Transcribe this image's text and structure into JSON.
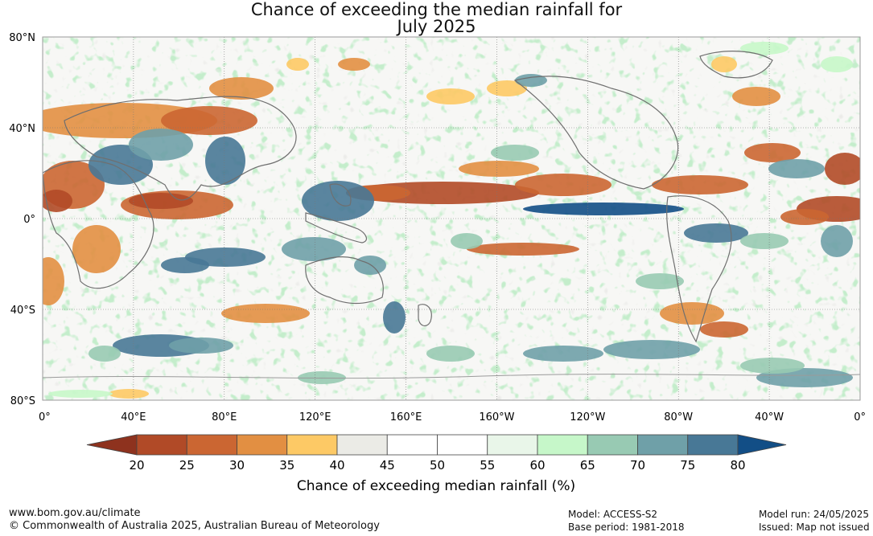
{
  "title": {
    "line1": "Chance of exceeding the median rainfall for",
    "line2": "July 2025"
  },
  "map": {
    "lat_labels": [
      "80°N",
      "40°N",
      "0°",
      "40°S",
      "80°S"
    ],
    "lon_labels": [
      "0°",
      "40°E",
      "80°E",
      "120°E",
      "160°E",
      "160°W",
      "120°W",
      "80°W",
      "40°W",
      "0°"
    ]
  },
  "colorbar": {
    "ticks": [
      "20",
      "25",
      "30",
      "35",
      "40",
      "45",
      "50",
      "55",
      "60",
      "65",
      "70",
      "75",
      "80"
    ],
    "colors": [
      "#8e321e",
      "#b14a27",
      "#cb6632",
      "#e28f42",
      "#fdc965",
      "#ebebe6",
      "#ffffff",
      "#ffffff",
      "#e9f6e9",
      "#c6f7c9",
      "#98cab3",
      "#6fa0a8",
      "#487896",
      "#124e86"
    ],
    "label": "Chance of exceeding median rainfall (%)"
  },
  "footer": {
    "url": "www.bom.gov.au/climate",
    "copyright": "© Commonwealth of Australia 2025, Australian Bureau of Meteorology",
    "model": "Model: ACCESS-S2",
    "base_period": "Base period: 1981-2018",
    "model_run": "Model run: 24/05/2025",
    "issued": "Issued: Map not issued"
  }
}
